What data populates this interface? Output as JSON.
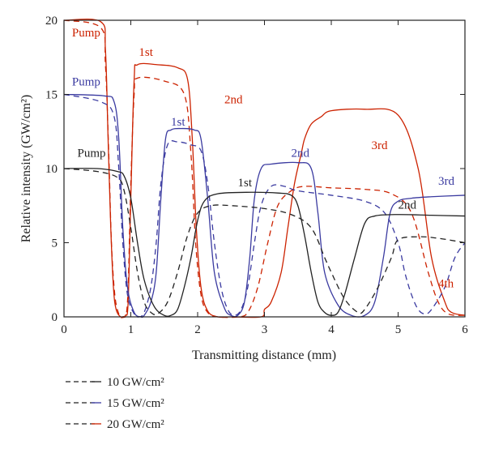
{
  "chart_data": {
    "type": "line",
    "xlabel": "Transmitting distance (mm)",
    "ylabel": "Relative intensity (GW/cm²)",
    "xlim": [
      0,
      6
    ],
    "ylim": [
      0,
      20
    ],
    "xticks": [
      "0",
      "1",
      "2",
      "3",
      "4",
      "5",
      "6"
    ],
    "yticks": [
      "0",
      "5",
      "10",
      "15",
      "20"
    ],
    "grid": false,
    "legend_position": "bottom-left",
    "colors": {
      "10": "#222222",
      "15": "#3a3aa0",
      "20": "#cc2200"
    },
    "legend": [
      {
        "label": "10 GW/cm²",
        "color": "#222222"
      },
      {
        "label": "15 GW/cm²",
        "color": "#3a3aa0"
      },
      {
        "label": "20 GW/cm²",
        "color": "#cc2200"
      }
    ],
    "series": [
      {
        "color": "#cc2200",
        "dash": "solid",
        "points": [
          [
            0,
            20
          ],
          [
            0.55,
            19.9
          ],
          [
            0.62,
            18
          ],
          [
            0.66,
            12
          ],
          [
            0.7,
            6
          ],
          [
            0.74,
            2
          ],
          [
            0.78,
            0.5
          ],
          [
            0.85,
            0
          ],
          [
            0.92,
            0.1
          ],
          [
            0.96,
            1
          ],
          [
            1.0,
            8
          ],
          [
            1.05,
            16
          ],
          [
            1.1,
            17
          ],
          [
            1.4,
            17
          ],
          [
            1.7,
            16.8
          ],
          [
            1.85,
            16
          ],
          [
            1.92,
            12
          ],
          [
            1.98,
            6
          ],
          [
            2.05,
            2
          ],
          [
            2.15,
            0.4
          ],
          [
            2.3,
            0
          ],
          [
            2.5,
            0
          ],
          [
            2.95,
            0
          ],
          [
            3.0,
            0.5
          ],
          [
            3.1,
            1
          ],
          [
            3.25,
            3
          ],
          [
            3.35,
            6
          ],
          [
            3.45,
            9
          ],
          [
            3.55,
            11
          ],
          [
            3.6,
            12
          ],
          [
            3.7,
            13
          ],
          [
            3.85,
            13.5
          ],
          [
            4.0,
            13.9
          ],
          [
            4.5,
            14
          ],
          [
            5.0,
            13.6
          ],
          [
            5.3,
            10
          ],
          [
            5.5,
            4
          ],
          [
            5.7,
            1
          ],
          [
            5.8,
            0.3
          ],
          [
            6,
            0.1
          ]
        ]
      },
      {
        "color": "#cc2200",
        "dash": "dashed",
        "points": [
          [
            0,
            20
          ],
          [
            0.55,
            19.5
          ],
          [
            0.62,
            17
          ],
          [
            0.67,
            11
          ],
          [
            0.71,
            5
          ],
          [
            0.76,
            1.5
          ],
          [
            0.82,
            0.2
          ],
          [
            0.88,
            0
          ],
          [
            0.95,
            1
          ],
          [
            1.0,
            9
          ],
          [
            1.05,
            15
          ],
          [
            1.1,
            16.1
          ],
          [
            1.5,
            15.9
          ],
          [
            1.8,
            15
          ],
          [
            1.9,
            11
          ],
          [
            1.97,
            5
          ],
          [
            2.05,
            1.5
          ],
          [
            2.15,
            0.3
          ],
          [
            2.3,
            0
          ],
          [
            2.6,
            0
          ],
          [
            2.75,
            0.3
          ],
          [
            2.9,
            2
          ],
          [
            3.05,
            5
          ],
          [
            3.2,
            7.5
          ],
          [
            3.4,
            8.5
          ],
          [
            3.6,
            8.8
          ],
          [
            4.0,
            8.7
          ],
          [
            4.5,
            8.6
          ],
          [
            4.9,
            8.3
          ],
          [
            5.2,
            7
          ],
          [
            5.45,
            3
          ],
          [
            5.6,
            1
          ],
          [
            5.75,
            0.2
          ],
          [
            6,
            0.1
          ]
        ]
      },
      {
        "color": "#3a3aa0",
        "dash": "solid",
        "points": [
          [
            0,
            15
          ],
          [
            0.6,
            14.9
          ],
          [
            0.75,
            14.5
          ],
          [
            0.82,
            12
          ],
          [
            0.88,
            6
          ],
          [
            0.95,
            2
          ],
          [
            1.05,
            0.3
          ],
          [
            1.15,
            0
          ],
          [
            1.2,
            0.1
          ],
          [
            1.3,
            1
          ],
          [
            1.38,
            3
          ],
          [
            1.45,
            8
          ],
          [
            1.52,
            12
          ],
          [
            1.6,
            12.6
          ],
          [
            1.75,
            12.7
          ],
          [
            1.95,
            12.6
          ],
          [
            2.05,
            12
          ],
          [
            2.15,
            8
          ],
          [
            2.25,
            3
          ],
          [
            2.4,
            0.6
          ],
          [
            2.5,
            0.1
          ],
          [
            2.6,
            0.1
          ],
          [
            2.7,
            1
          ],
          [
            2.78,
            4
          ],
          [
            2.85,
            8
          ],
          [
            2.95,
            10
          ],
          [
            3.1,
            10.3
          ],
          [
            3.5,
            10.4
          ],
          [
            3.7,
            10
          ],
          [
            3.8,
            7
          ],
          [
            3.9,
            3
          ],
          [
            4.1,
            0.8
          ],
          [
            4.3,
            0.1
          ],
          [
            4.5,
            0.1
          ],
          [
            4.65,
            1
          ],
          [
            4.78,
            4
          ],
          [
            4.88,
            7
          ],
          [
            5.0,
            7.8
          ],
          [
            5.2,
            8.0
          ],
          [
            5.5,
            8.1
          ],
          [
            6,
            8.2
          ]
        ]
      },
      {
        "color": "#3a3aa0",
        "dash": "dashed",
        "points": [
          [
            0,
            15
          ],
          [
            0.55,
            14.5
          ],
          [
            0.75,
            13.5
          ],
          [
            0.82,
            10
          ],
          [
            0.88,
            5
          ],
          [
            0.95,
            1.5
          ],
          [
            1.05,
            0.2
          ],
          [
            1.12,
            0
          ],
          [
            1.2,
            0.3
          ],
          [
            1.3,
            2
          ],
          [
            1.38,
            5
          ],
          [
            1.45,
            9
          ],
          [
            1.55,
            11.6
          ],
          [
            1.7,
            11.8
          ],
          [
            1.9,
            11.6
          ],
          [
            2.05,
            11.2
          ],
          [
            2.15,
            9
          ],
          [
            2.25,
            5
          ],
          [
            2.35,
            2
          ],
          [
            2.45,
            0.5
          ],
          [
            2.55,
            0.1
          ],
          [
            2.65,
            0.5
          ],
          [
            2.75,
            2
          ],
          [
            2.85,
            5
          ],
          [
            2.95,
            7.5
          ],
          [
            3.1,
            8.8
          ],
          [
            3.3,
            8.8
          ],
          [
            3.5,
            8.5
          ],
          [
            4.0,
            8.2
          ],
          [
            4.5,
            7.8
          ],
          [
            4.8,
            7
          ],
          [
            5.0,
            5
          ],
          [
            5.1,
            3
          ],
          [
            5.2,
            1.5
          ],
          [
            5.3,
            0.5
          ],
          [
            5.4,
            0.2
          ],
          [
            5.5,
            0.5
          ],
          [
            5.7,
            2
          ],
          [
            5.85,
            4
          ],
          [
            6,
            5
          ]
        ]
      },
      {
        "color": "#222222",
        "dash": "solid",
        "points": [
          [
            0,
            10
          ],
          [
            0.5,
            10
          ],
          [
            0.8,
            9.8
          ],
          [
            0.9,
            9.5
          ],
          [
            1.0,
            8
          ],
          [
            1.1,
            5
          ],
          [
            1.2,
            2.5
          ],
          [
            1.35,
            0.7
          ],
          [
            1.5,
            0.1
          ],
          [
            1.6,
            0.1
          ],
          [
            1.7,
            0.5
          ],
          [
            1.8,
            2
          ],
          [
            1.9,
            4
          ],
          [
            2.0,
            6.5
          ],
          [
            2.1,
            7.8
          ],
          [
            2.3,
            8.3
          ],
          [
            2.8,
            8.4
          ],
          [
            3.2,
            8.35
          ],
          [
            3.4,
            8.2
          ],
          [
            3.5,
            7.5
          ],
          [
            3.6,
            5.5
          ],
          [
            3.7,
            3
          ],
          [
            3.8,
            1
          ],
          [
            3.9,
            0.3
          ],
          [
            4.0,
            0.1
          ],
          [
            4.1,
            0.3
          ],
          [
            4.2,
            1.5
          ],
          [
            4.35,
            4
          ],
          [
            4.5,
            6.3
          ],
          [
            4.65,
            6.8
          ],
          [
            5.0,
            6.9
          ],
          [
            5.5,
            6.85
          ],
          [
            6,
            6.8
          ]
        ]
      },
      {
        "color": "#222222",
        "dash": "dashed",
        "points": [
          [
            0,
            10
          ],
          [
            0.5,
            9.8
          ],
          [
            0.8,
            9.4
          ],
          [
            0.9,
            8.5
          ],
          [
            1.0,
            6
          ],
          [
            1.1,
            3
          ],
          [
            1.2,
            1
          ],
          [
            1.3,
            0.3
          ],
          [
            1.4,
            0.2
          ],
          [
            1.55,
            1
          ],
          [
            1.7,
            3
          ],
          [
            1.85,
            5.5
          ],
          [
            2.0,
            7
          ],
          [
            2.2,
            7.5
          ],
          [
            2.5,
            7.5
          ],
          [
            3.0,
            7.3
          ],
          [
            3.4,
            6.9
          ],
          [
            3.7,
            6
          ],
          [
            3.9,
            4
          ],
          [
            4.0,
            3
          ],
          [
            4.2,
            1.2
          ],
          [
            4.4,
            0.3
          ],
          [
            4.5,
            0.5
          ],
          [
            4.7,
            2
          ],
          [
            4.9,
            4
          ],
          [
            5.0,
            5.2
          ],
          [
            5.3,
            5.4
          ],
          [
            5.6,
            5.3
          ],
          [
            6,
            5
          ]
        ]
      }
    ],
    "annotations": [
      {
        "text": "Pump",
        "color": "#cc2200",
        "x": 0.12,
        "y": 18.9
      },
      {
        "text": "1st",
        "color": "#cc2200",
        "x": 1.12,
        "y": 17.6
      },
      {
        "text": "2nd",
        "color": "#cc2200",
        "x": 2.4,
        "y": 14.4
      },
      {
        "text": "3rd",
        "color": "#cc2200",
        "x": 4.6,
        "y": 11.3
      },
      {
        "text": "4th",
        "color": "#cc2200",
        "x": 5.6,
        "y": 2.0
      },
      {
        "text": "Pump",
        "color": "#3a3aa0",
        "x": 0.12,
        "y": 15.6
      },
      {
        "text": "1st",
        "color": "#3a3aa0",
        "x": 1.6,
        "y": 12.9
      },
      {
        "text": "2nd",
        "color": "#3a3aa0",
        "x": 3.4,
        "y": 10.8
      },
      {
        "text": "3rd",
        "color": "#3a3aa0",
        "x": 5.6,
        "y": 8.9
      },
      {
        "text": "Pump",
        "color": "#222222",
        "x": 0.2,
        "y": 10.8
      },
      {
        "text": "1st",
        "color": "#222222",
        "x": 2.6,
        "y": 8.8
      },
      {
        "text": "2nd",
        "color": "#222222",
        "x": 5.0,
        "y": 7.3
      }
    ]
  }
}
